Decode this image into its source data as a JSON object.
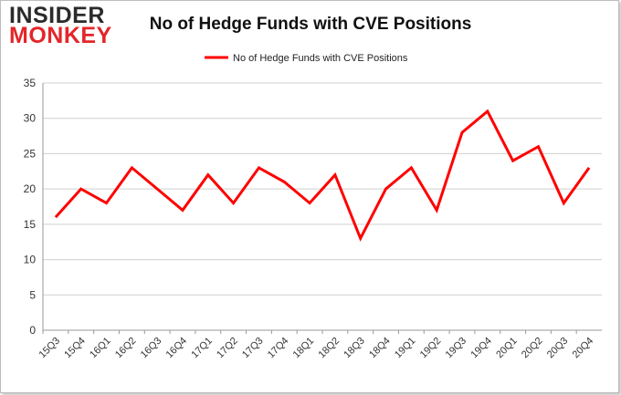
{
  "logo": {
    "line1": "INSIDER",
    "line2": "MONKEY"
  },
  "colors": {
    "series": "#ff0000",
    "logo_accent": "#e3262b",
    "grid": "#d0d0d0"
  },
  "chart_data": {
    "type": "line",
    "title": "No of Hedge Funds with CVE Positions",
    "xlabel": "",
    "ylabel": "",
    "ylim": [
      0,
      35
    ],
    "yticks": [
      0,
      5,
      10,
      15,
      20,
      25,
      30,
      35
    ],
    "grid": true,
    "legend_position": "top-center",
    "categories": [
      "15Q3",
      "15Q4",
      "16Q1",
      "16Q2",
      "16Q3",
      "16Q4",
      "17Q1",
      "17Q2",
      "17Q3",
      "17Q4",
      "18Q1",
      "18Q2",
      "18Q3",
      "18Q4",
      "19Q1",
      "19Q2",
      "19Q3",
      "19Q4",
      "20Q1",
      "20Q2",
      "20Q3",
      "20Q4"
    ],
    "series": [
      {
        "name": "No of Hedge Funds with CVE Positions",
        "color": "#ff0000",
        "values": [
          16,
          20,
          18,
          23,
          20,
          17,
          22,
          18,
          23,
          21,
          18,
          22,
          13,
          20,
          23,
          17,
          28,
          31,
          24,
          26,
          18,
          23
        ]
      }
    ]
  }
}
